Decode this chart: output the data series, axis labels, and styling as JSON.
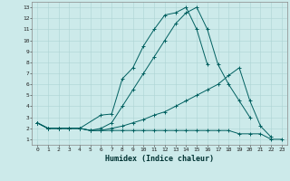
{
  "xlabel": "Humidex (Indice chaleur)",
  "background_color": "#cceaea",
  "grid_color": "#add4d4",
  "line_color": "#006060",
  "xlim": [
    -0.5,
    23.5
  ],
  "ylim": [
    0.5,
    13.5
  ],
  "xticks": [
    0,
    1,
    2,
    3,
    4,
    5,
    6,
    7,
    8,
    9,
    10,
    11,
    12,
    13,
    14,
    15,
    16,
    17,
    18,
    19,
    20,
    21,
    22,
    23
  ],
  "yticks": [
    1,
    2,
    3,
    4,
    5,
    6,
    7,
    8,
    9,
    10,
    11,
    12,
    13
  ],
  "series": [
    {
      "x": [
        0,
        1,
        2,
        3,
        4,
        6,
        7,
        8,
        9,
        10,
        11,
        12,
        13,
        14,
        15,
        16
      ],
      "y": [
        2.5,
        2,
        2,
        2,
        2,
        3.2,
        3.3,
        6.5,
        7.5,
        9.5,
        11.0,
        12.3,
        12.5,
        13.0,
        11.0,
        7.8
      ]
    },
    {
      "x": [
        0,
        1,
        2,
        3,
        4,
        5,
        6,
        7,
        8,
        9,
        10,
        11,
        12,
        13,
        14,
        15,
        16,
        17,
        18,
        19,
        20
      ],
      "y": [
        2.5,
        2,
        2,
        2,
        2,
        1.8,
        2.0,
        2.5,
        4.0,
        5.5,
        7.0,
        8.5,
        10.0,
        11.5,
        12.5,
        13.0,
        11.0,
        7.8,
        6.0,
        4.5,
        3.0
      ]
    },
    {
      "x": [
        0,
        1,
        2,
        3,
        4,
        5,
        6,
        7,
        8,
        9,
        10,
        11,
        12,
        13,
        14,
        15,
        16,
        17,
        18,
        19,
        20,
        21,
        22
      ],
      "y": [
        2.5,
        2,
        2,
        2,
        2,
        1.8,
        1.8,
        2.0,
        2.2,
        2.5,
        2.8,
        3.2,
        3.5,
        4.0,
        4.5,
        5.0,
        5.5,
        6.0,
        6.8,
        7.5,
        4.5,
        2.2,
        1.2
      ]
    },
    {
      "x": [
        0,
        1,
        2,
        3,
        4,
        5,
        6,
        7,
        8,
        9,
        10,
        11,
        12,
        13,
        14,
        15,
        16,
        17,
        18,
        19,
        20,
        21,
        22,
        23
      ],
      "y": [
        2.5,
        2,
        2,
        2,
        2,
        1.8,
        1.8,
        1.8,
        1.8,
        1.8,
        1.8,
        1.8,
        1.8,
        1.8,
        1.8,
        1.8,
        1.8,
        1.8,
        1.8,
        1.5,
        1.5,
        1.5,
        1.0,
        1.0
      ]
    }
  ]
}
